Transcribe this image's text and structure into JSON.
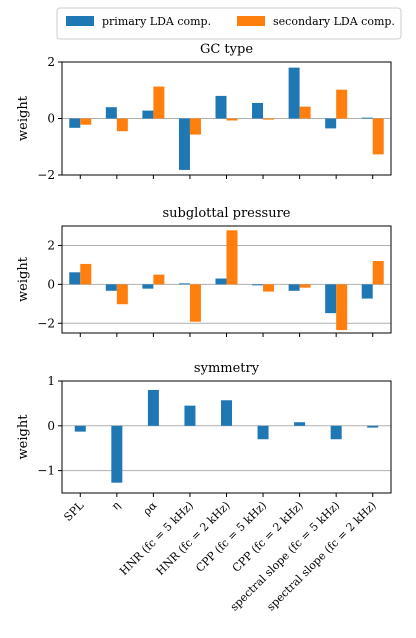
{
  "legend": {
    "entries": [
      {
        "label": "primary LDA comp.",
        "color": "#1f77b4"
      },
      {
        "label": "secondary LDA comp.",
        "color": "#ff7f0e"
      }
    ]
  },
  "categories": [
    "SPL",
    "η",
    "ρα",
    "HNR (fc = 5 kHz)",
    "HNR (fc = 2 kHz)",
    "CPP (fc = 5 kHz)",
    "CPP (fc = 2 kHz)",
    "spectral slope (fc = 5 kHz)",
    "spectral slope (fc = 2 kHz)"
  ],
  "chart_data": [
    {
      "type": "bar",
      "title": "GC type",
      "ylabel": "weight",
      "ylim": [
        -2,
        2
      ],
      "yticks": [
        -2,
        0,
        2
      ],
      "grid": "horizontal",
      "series": [
        {
          "name": "primary LDA comp.",
          "color": "#1f77b4",
          "values": [
            -0.33,
            0.4,
            0.28,
            -1.82,
            0.8,
            0.55,
            1.8,
            -0.35,
            0.03
          ]
        },
        {
          "name": "secondary LDA comp.",
          "color": "#ff7f0e",
          "values": [
            -0.22,
            -0.45,
            1.13,
            -0.57,
            -0.07,
            -0.04,
            0.42,
            1.02,
            -1.27
          ]
        }
      ]
    },
    {
      "type": "bar",
      "title": "subglottal pressure",
      "ylabel": "weight",
      "ylim": [
        -2.5,
        3
      ],
      "yticks": [
        -2,
        0,
        2
      ],
      "grid": "horizontal",
      "series": [
        {
          "name": "primary LDA comp.",
          "color": "#1f77b4",
          "values": [
            0.62,
            -0.33,
            -0.22,
            0.05,
            0.3,
            -0.05,
            -0.33,
            -1.48,
            -0.73
          ]
        },
        {
          "name": "secondary LDA comp.",
          "color": "#ff7f0e",
          "values": [
            1.05,
            -1.02,
            0.5,
            -1.92,
            2.78,
            -0.37,
            -0.17,
            -2.35,
            1.2
          ]
        }
      ]
    },
    {
      "type": "bar",
      "title": "symmetry",
      "ylabel": "weight",
      "ylim": [
        -1.5,
        1
      ],
      "yticks": [
        -1,
        0,
        1
      ],
      "grid": "horizontal",
      "series": [
        {
          "name": "primary LDA comp.",
          "color": "#1f77b4",
          "values": [
            -0.13,
            -1.27,
            0.8,
            0.45,
            0.57,
            -0.3,
            0.08,
            -0.3,
            -0.04
          ]
        }
      ]
    }
  ]
}
